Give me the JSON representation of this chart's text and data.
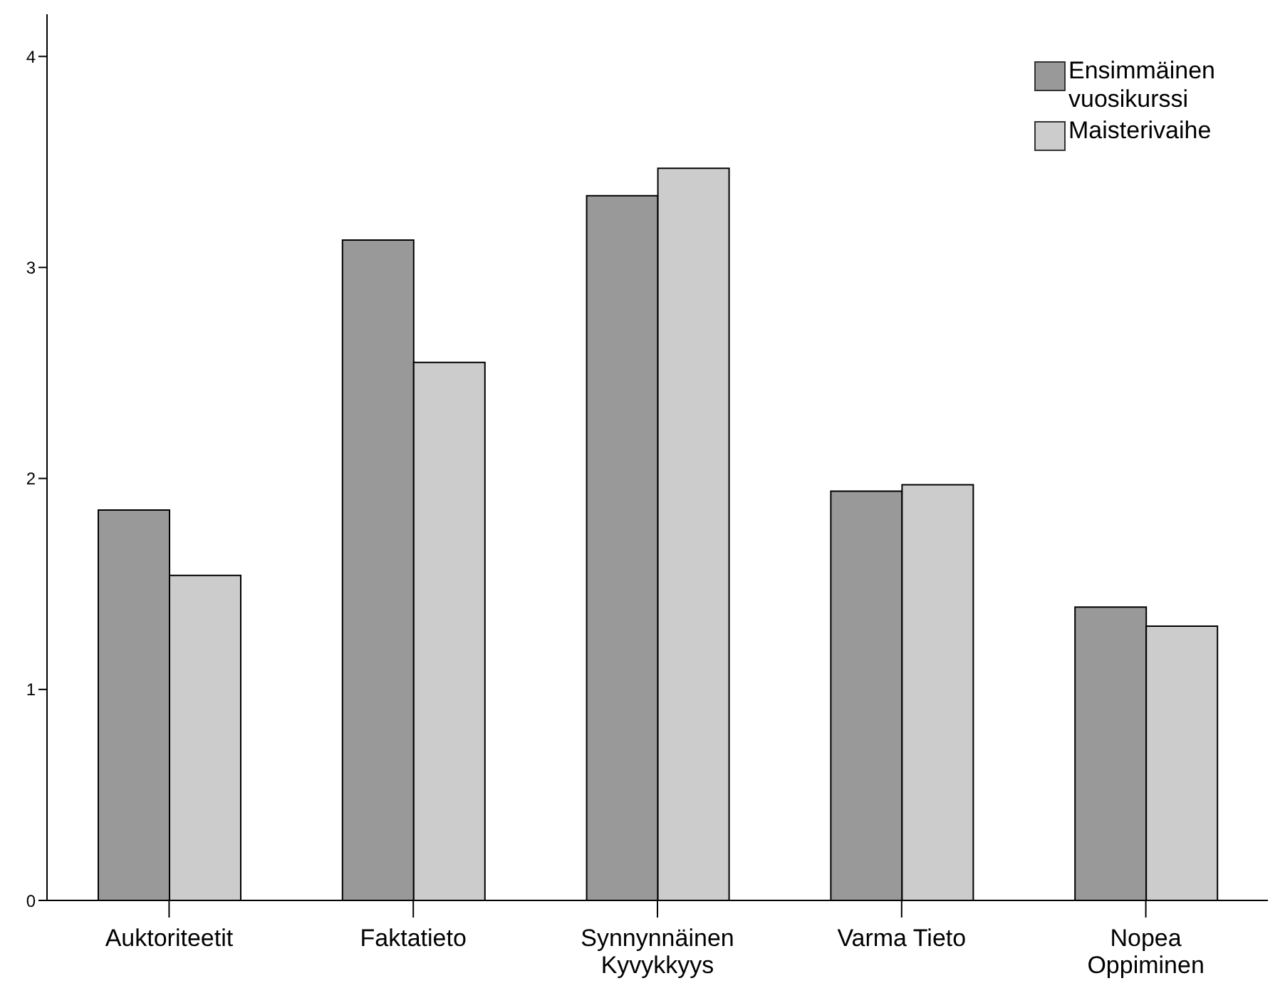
{
  "chart_data": {
    "type": "bar",
    "categories": [
      "Auktoriteetit",
      "Faktatieto",
      "Synnynnäinen Kyvykkyys",
      "Varma Tieto",
      "Nopea Oppiminen"
    ],
    "series": [
      {
        "name": "Ensimmäinen vuosikurssi",
        "color": "#999999",
        "values": [
          1.85,
          3.13,
          3.34,
          1.94,
          1.39
        ]
      },
      {
        "name": "Maisterivaihe",
        "color": "#cccccc",
        "values": [
          1.54,
          2.55,
          3.47,
          1.97,
          1.3
        ]
      }
    ],
    "ylim": [
      0,
      4.2
    ],
    "yticks": [
      0,
      1,
      2,
      3,
      4
    ],
    "grid": false,
    "legend": "top right"
  }
}
